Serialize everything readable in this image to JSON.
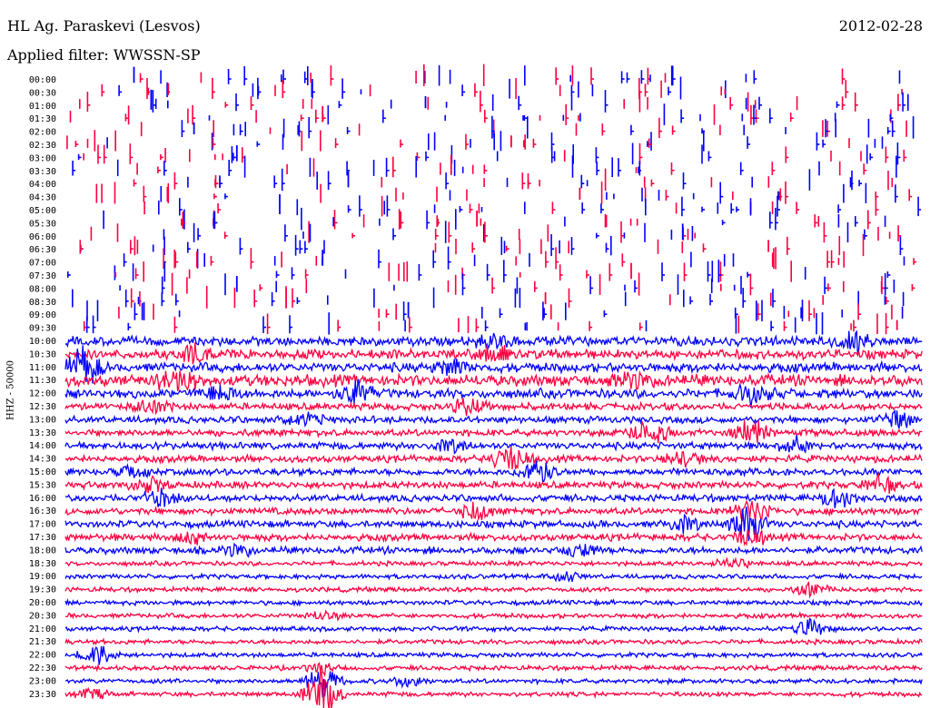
{
  "header": {
    "station": "HL Ag. Paraskevi (Lesvos)",
    "date": "2012-02-28",
    "filter": "Applied filter: WWSSN-SP"
  },
  "chart_data": {
    "type": "line",
    "title": "HL Ag. Paraskevi (Lesvos)",
    "ylabel": "HHZ - 50000",
    "row_labels": [
      "00:00",
      "00:30",
      "01:00",
      "01:30",
      "02:00",
      "02:30",
      "03:00",
      "03:30",
      "04:00",
      "04:30",
      "05:00",
      "05:30",
      "06:00",
      "06:30",
      "07:00",
      "07:30",
      "08:00",
      "08:30",
      "09:00",
      "09:30",
      "10:00",
      "10:30",
      "11:00",
      "11:30",
      "12:00",
      "12:30",
      "13:00",
      "13:30",
      "14:00",
      "14:30",
      "15:00",
      "15:30",
      "16:00",
      "16:30",
      "17:00",
      "17:30",
      "18:00",
      "18:30",
      "19:00",
      "19:30",
      "20:00",
      "20:30",
      "21:00",
      "21:30",
      "22:00",
      "22:30",
      "23:00",
      "23:30"
    ],
    "colors": [
      "#0000ff",
      "#ff0040"
    ],
    "traces": [
      {
        "start": "00:00",
        "data": false,
        "noise": 0,
        "events": [
          {
            "at": 0.08,
            "amp": 8
          }
        ]
      },
      {
        "start": "00:30",
        "data": false,
        "noise": 0,
        "events": [
          {
            "at": 0.12,
            "amp": 6
          }
        ]
      },
      {
        "start": "01:00",
        "data": false,
        "noise": 0,
        "events": [
          {
            "at": 0.1,
            "amp": 10
          },
          {
            "at": 0.42,
            "amp": 6
          }
        ]
      },
      {
        "start": "01:30",
        "data": false,
        "noise": 0,
        "events": [
          {
            "at": 0.3,
            "amp": 8
          }
        ]
      },
      {
        "start": "02:00",
        "data": false,
        "noise": 0,
        "events": [
          {
            "at": 0.15,
            "amp": 6
          }
        ]
      },
      {
        "start": "02:30",
        "data": false,
        "noise": 0,
        "events": [
          {
            "at": 0.52,
            "amp": 6
          }
        ]
      },
      {
        "start": "03:00",
        "data": false,
        "noise": 0,
        "events": [
          {
            "at": 0.2,
            "amp": 8
          }
        ]
      },
      {
        "start": "03:30",
        "data": false,
        "noise": 0,
        "events": [
          {
            "at": 0.45,
            "amp": 10
          }
        ]
      },
      {
        "start": "04:00",
        "data": false,
        "noise": 0,
        "events": [
          {
            "at": 0.33,
            "amp": 8
          }
        ]
      },
      {
        "start": "04:30",
        "data": false,
        "noise": 0,
        "events": [
          {
            "at": 0.6,
            "amp": 6
          }
        ]
      },
      {
        "start": "05:00",
        "data": false,
        "noise": 0,
        "events": [
          {
            "at": 0.25,
            "amp": 10
          }
        ]
      },
      {
        "start": "05:30",
        "data": false,
        "noise": 0,
        "events": [
          {
            "at": 0.48,
            "amp": 8
          }
        ]
      },
      {
        "start": "06:00",
        "data": false,
        "noise": 0,
        "events": [
          {
            "at": 0.72,
            "amp": 8
          }
        ]
      },
      {
        "start": "06:30",
        "data": false,
        "noise": 0,
        "events": [
          {
            "at": 0.82,
            "amp": 6
          }
        ]
      },
      {
        "start": "07:00",
        "data": false,
        "noise": 0,
        "events": [
          {
            "at": 0.3,
            "amp": 8
          }
        ]
      },
      {
        "start": "07:30",
        "data": false,
        "noise": 0,
        "events": [
          {
            "at": 0.66,
            "amp": 8
          }
        ]
      },
      {
        "start": "08:00",
        "data": false,
        "noise": 0,
        "events": [
          {
            "at": 0.2,
            "amp": 8
          }
        ]
      },
      {
        "start": "08:30",
        "data": false,
        "noise": 0,
        "events": [
          {
            "at": 0.56,
            "amp": 6
          }
        ]
      },
      {
        "start": "09:00",
        "data": false,
        "noise": 0,
        "events": [
          {
            "at": 0.4,
            "amp": 8
          }
        ]
      },
      {
        "start": "09:30",
        "data": false,
        "noise": 0,
        "events": [
          {
            "at": 0.97,
            "amp": 5
          }
        ]
      },
      {
        "start": "10:00",
        "data": true,
        "noise": 4,
        "events": [
          {
            "at": 0.5,
            "amp": 8
          },
          {
            "at": 0.92,
            "amp": 10
          }
        ]
      },
      {
        "start": "10:30",
        "data": true,
        "noise": 4,
        "events": [
          {
            "at": 0.15,
            "amp": 10
          },
          {
            "at": 0.5,
            "amp": 8
          }
        ]
      },
      {
        "start": "11:00",
        "data": true,
        "noise": 4,
        "events": [
          {
            "at": 0.02,
            "amp": 20
          },
          {
            "at": 0.45,
            "amp": 8
          }
        ]
      },
      {
        "start": "11:30",
        "data": true,
        "noise": 5,
        "events": [
          {
            "at": 0.13,
            "amp": 12
          },
          {
            "at": 0.66,
            "amp": 8
          }
        ]
      },
      {
        "start": "12:00",
        "data": true,
        "noise": 4,
        "events": [
          {
            "at": 0.18,
            "amp": 8
          },
          {
            "at": 0.34,
            "amp": 12
          },
          {
            "at": 0.8,
            "amp": 10
          }
        ]
      },
      {
        "start": "12:30",
        "data": true,
        "noise": 3,
        "events": [
          {
            "at": 0.1,
            "amp": 8
          },
          {
            "at": 0.47,
            "amp": 10
          }
        ]
      },
      {
        "start": "13:00",
        "data": true,
        "noise": 3,
        "events": [
          {
            "at": 0.28,
            "amp": 6
          },
          {
            "at": 0.97,
            "amp": 8
          }
        ]
      },
      {
        "start": "13:30",
        "data": true,
        "noise": 3,
        "events": [
          {
            "at": 0.68,
            "amp": 14
          },
          {
            "at": 0.8,
            "amp": 14
          }
        ]
      },
      {
        "start": "14:00",
        "data": true,
        "noise": 3,
        "events": [
          {
            "at": 0.45,
            "amp": 6
          },
          {
            "at": 0.85,
            "amp": 8
          }
        ]
      },
      {
        "start": "14:30",
        "data": true,
        "noise": 3,
        "events": [
          {
            "at": 0.52,
            "amp": 14
          },
          {
            "at": 0.72,
            "amp": 8
          }
        ]
      },
      {
        "start": "15:00",
        "data": true,
        "noise": 3,
        "events": [
          {
            "at": 0.55,
            "amp": 16
          },
          {
            "at": 0.08,
            "amp": 6
          }
        ]
      },
      {
        "start": "15:30",
        "data": true,
        "noise": 3,
        "events": [
          {
            "at": 0.1,
            "amp": 8
          },
          {
            "at": 0.95,
            "amp": 8
          }
        ]
      },
      {
        "start": "16:00",
        "data": true,
        "noise": 3,
        "events": [
          {
            "at": 0.11,
            "amp": 8
          },
          {
            "at": 0.9,
            "amp": 12
          }
        ]
      },
      {
        "start": "16:30",
        "data": true,
        "noise": 3,
        "events": [
          {
            "at": 0.48,
            "amp": 10
          },
          {
            "at": 0.8,
            "amp": 12
          }
        ]
      },
      {
        "start": "17:00",
        "data": true,
        "noise": 3,
        "events": [
          {
            "at": 0.8,
            "amp": 22
          },
          {
            "at": 0.72,
            "amp": 8
          }
        ]
      },
      {
        "start": "17:30",
        "data": true,
        "noise": 3,
        "events": [
          {
            "at": 0.15,
            "amp": 6
          },
          {
            "at": 0.8,
            "amp": 10
          }
        ]
      },
      {
        "start": "18:00",
        "data": true,
        "noise": 3,
        "events": [
          {
            "at": 0.2,
            "amp": 6
          },
          {
            "at": 0.6,
            "amp": 6
          }
        ]
      },
      {
        "start": "18:30",
        "data": true,
        "noise": 2,
        "events": [
          {
            "at": 0.78,
            "amp": 5
          }
        ]
      },
      {
        "start": "19:00",
        "data": true,
        "noise": 2,
        "events": [
          {
            "at": 0.58,
            "amp": 6
          }
        ]
      },
      {
        "start": "19:30",
        "data": true,
        "noise": 2,
        "events": [
          {
            "at": 0.87,
            "amp": 7
          }
        ]
      },
      {
        "start": "20:00",
        "data": true,
        "noise": 2,
        "events": []
      },
      {
        "start": "20:30",
        "data": true,
        "noise": 2,
        "events": [
          {
            "at": 0.3,
            "amp": 4
          }
        ]
      },
      {
        "start": "21:00",
        "data": true,
        "noise": 2,
        "events": [
          {
            "at": 0.87,
            "amp": 9
          }
        ]
      },
      {
        "start": "21:30",
        "data": true,
        "noise": 2,
        "events": []
      },
      {
        "start": "22:00",
        "data": true,
        "noise": 2,
        "events": [
          {
            "at": 0.04,
            "amp": 12
          }
        ]
      },
      {
        "start": "22:30",
        "data": true,
        "noise": 2,
        "events": [
          {
            "at": 0.3,
            "amp": 5
          }
        ]
      },
      {
        "start": "23:00",
        "data": true,
        "noise": 2,
        "events": [
          {
            "at": 0.3,
            "amp": 16
          },
          {
            "at": 0.4,
            "amp": 6
          }
        ]
      },
      {
        "start": "23:30",
        "data": true,
        "noise": 2,
        "events": [
          {
            "at": 0.3,
            "amp": 24
          },
          {
            "at": 0.03,
            "amp": 5
          }
        ]
      }
    ]
  }
}
